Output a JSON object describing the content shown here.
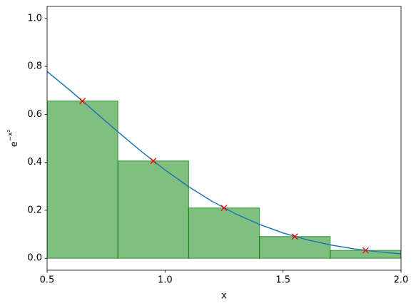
{
  "chart_data": {
    "type": "histogram",
    "xlabel": "x",
    "ylabel": {
      "base": "e",
      "exponent": "−x²"
    },
    "xlim": [
      0.5,
      2.0
    ],
    "ylim": [
      -0.05,
      1.05
    ],
    "xticks": [
      0.5,
      {
        "value": 1.0,
        "label": "1.0"
      },
      1.5,
      {
        "value": 2.0,
        "label": "2.0"
      }
    ],
    "yticks": [
      {
        "value": 0.0,
        "label": "0.0"
      },
      0.2,
      0.4,
      0.6,
      0.8,
      {
        "value": 1.0,
        "label": "1.0"
      }
    ],
    "bins": [
      0.5,
      0.8,
      1.1,
      1.4,
      1.7,
      2.0
    ],
    "values": [
      0.6554,
      0.4056,
      0.2096,
      0.0905,
      0.0326
    ],
    "color": "#008000",
    "series": [
      {
        "type": "line",
        "color": "#1f77b4",
        "x": [
          0.5,
          0.6,
          0.7,
          0.8,
          0.9,
          1.0,
          1.1,
          1.2,
          1.3,
          1.4,
          1.5,
          1.6,
          1.7,
          1.8,
          1.9,
          2.0
        ],
        "values": [
          0.7788,
          0.6977,
          0.6126,
          0.5273,
          0.4449,
          0.3679,
          0.2982,
          0.2369,
          0.1845,
          0.1409,
          0.1054,
          0.0773,
          0.0556,
          0.0392,
          0.0271,
          0.0183
        ]
      },
      {
        "type": "scatter",
        "color": "#ff0000",
        "x": [
          0.65,
          0.95,
          1.25,
          1.55,
          1.85
        ],
        "values": [
          0.6554,
          0.4056,
          0.2096,
          0.0905,
          0.0326
        ]
      }
    ]
  }
}
